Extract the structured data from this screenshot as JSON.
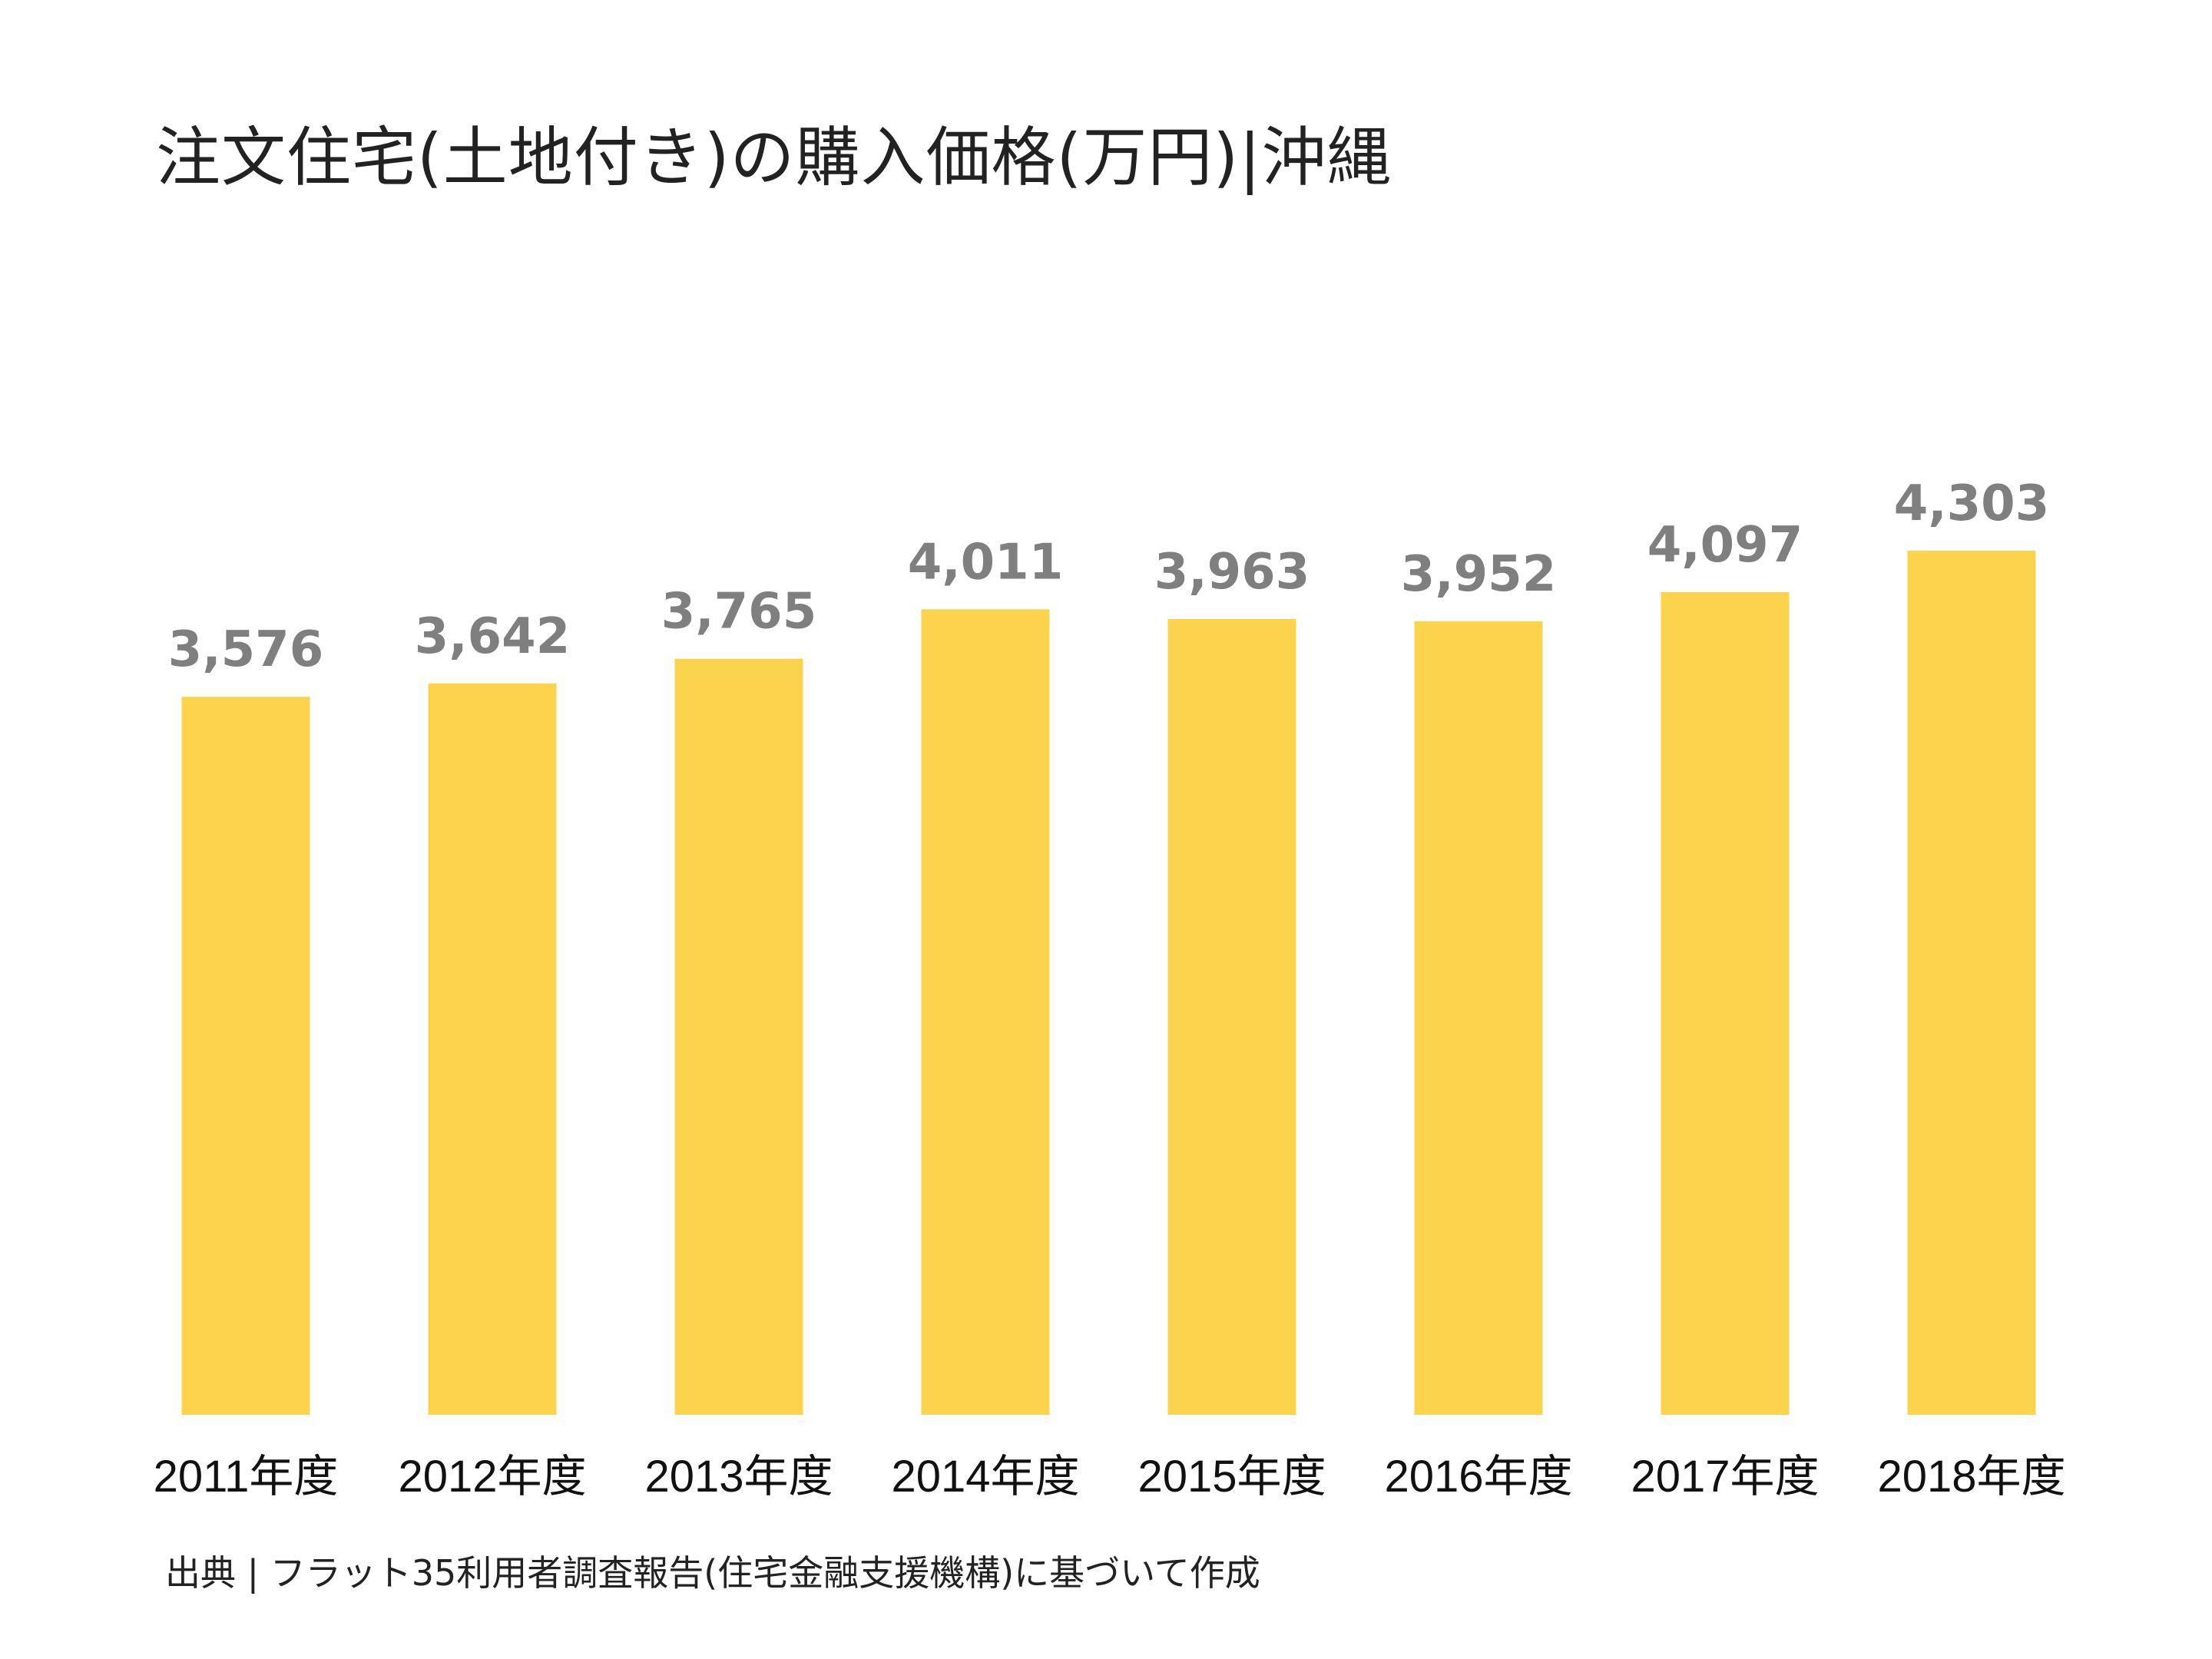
{
  "title": "注文住宅(土地付き)の購入価格(万円)|沖縄",
  "source": "出典 | フラット35利用者調査報告(住宅金融支援機構)に基づいて作成",
  "colors": {
    "bar": "#fcd34d",
    "value_label": "#7f7f7f",
    "text": "#222222"
  },
  "chart_data": {
    "type": "bar",
    "title": "注文住宅(土地付き)の購入価格(万円)|沖縄",
    "categories": [
      "2011年度",
      "2012年度",
      "2013年度",
      "2014年度",
      "2015年度",
      "2016年度",
      "2017年度",
      "2018年度"
    ],
    "values": [
      3576,
      3642,
      3765,
      4011,
      3963,
      3952,
      4097,
      4303
    ],
    "value_labels": [
      "3,576",
      "3,642",
      "3,765",
      "4,011",
      "3,963",
      "3,952",
      "4,097",
      "4,303"
    ],
    "ylim": [
      0,
      4303
    ],
    "grid": false,
    "legend": "none"
  }
}
